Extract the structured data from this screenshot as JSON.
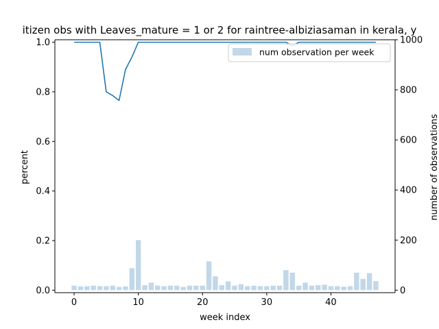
{
  "chart_data": {
    "type": "bar",
    "title": "itizen obs with Leaves_mature = 1 or 2 for raintree-albiziasaman in kerala, y",
    "xlabel": "week index",
    "ylabel": "percent",
    "y2label": "number of observations",
    "xlim": [
      -3,
      50
    ],
    "ylim": [
      -0.01,
      1.01
    ],
    "y2lim": [
      -10,
      1000
    ],
    "xticks": [
      "0",
      "10",
      "20",
      "30",
      "40"
    ],
    "yticks": [
      "0.0",
      "0.2",
      "0.4",
      "0.6",
      "0.8",
      "1.0"
    ],
    "y2ticks": [
      "0",
      "200",
      "400",
      "600",
      "800",
      "1000"
    ],
    "legend": {
      "label": "num observation per week",
      "placement": "upper right"
    },
    "bar_color": "#c2d8e9",
    "line_color": "#1f77b4",
    "bars": {
      "x": [
        0,
        1,
        2,
        3,
        4,
        5,
        6,
        7,
        8,
        9,
        10,
        11,
        12,
        13,
        14,
        15,
        16,
        17,
        18,
        19,
        20,
        21,
        22,
        23,
        24,
        25,
        26,
        27,
        28,
        29,
        30,
        31,
        32,
        33,
        34,
        35,
        36,
        37,
        38,
        39,
        40,
        41,
        42,
        43,
        44,
        45,
        46,
        47
      ],
      "values": [
        18,
        15,
        16,
        18,
        16,
        16,
        18,
        13,
        15,
        88,
        200,
        20,
        30,
        18,
        16,
        18,
        18,
        13,
        18,
        18,
        18,
        115,
        55,
        20,
        35,
        18,
        24,
        16,
        18,
        16,
        16,
        18,
        18,
        80,
        70,
        18,
        30,
        18,
        20,
        22,
        16,
        16,
        14,
        16,
        70,
        45,
        68,
        36
      ]
    },
    "line": {
      "x": [
        0,
        1,
        2,
        3,
        4,
        5,
        6,
        7,
        8,
        9,
        10,
        11,
        12,
        13,
        14,
        15,
        16,
        17,
        18,
        19,
        20,
        21,
        22,
        23,
        24,
        25,
        26,
        27,
        28,
        29,
        30,
        31,
        32,
        33,
        34,
        35,
        36,
        37,
        38,
        39,
        40,
        41,
        42,
        43,
        44,
        45,
        46,
        47
      ],
      "values": [
        1,
        1,
        1,
        1,
        1,
        0.8,
        0.785,
        0.765,
        0.89,
        0.94,
        1,
        1,
        1,
        1,
        1,
        1,
        1,
        1,
        1,
        1,
        1,
        1,
        1,
        1,
        1,
        1,
        1,
        1,
        1,
        1,
        1,
        1,
        1,
        1,
        0.985,
        1,
        1,
        1,
        1,
        1,
        1,
        1,
        1,
        1,
        1,
        1,
        1,
        1
      ]
    }
  }
}
